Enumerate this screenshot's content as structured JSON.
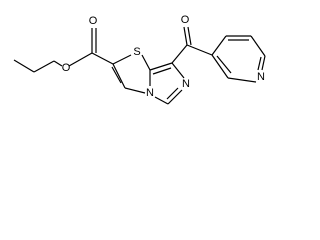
{
  "atoms": [
    {
      "label": "O"
    },
    {
      "label": "O"
    },
    {
      "label": "S"
    },
    {
      "label": "N"
    },
    {
      "label": "N"
    },
    {
      "label": "O"
    },
    {
      "label": "N"
    }
  ]
}
